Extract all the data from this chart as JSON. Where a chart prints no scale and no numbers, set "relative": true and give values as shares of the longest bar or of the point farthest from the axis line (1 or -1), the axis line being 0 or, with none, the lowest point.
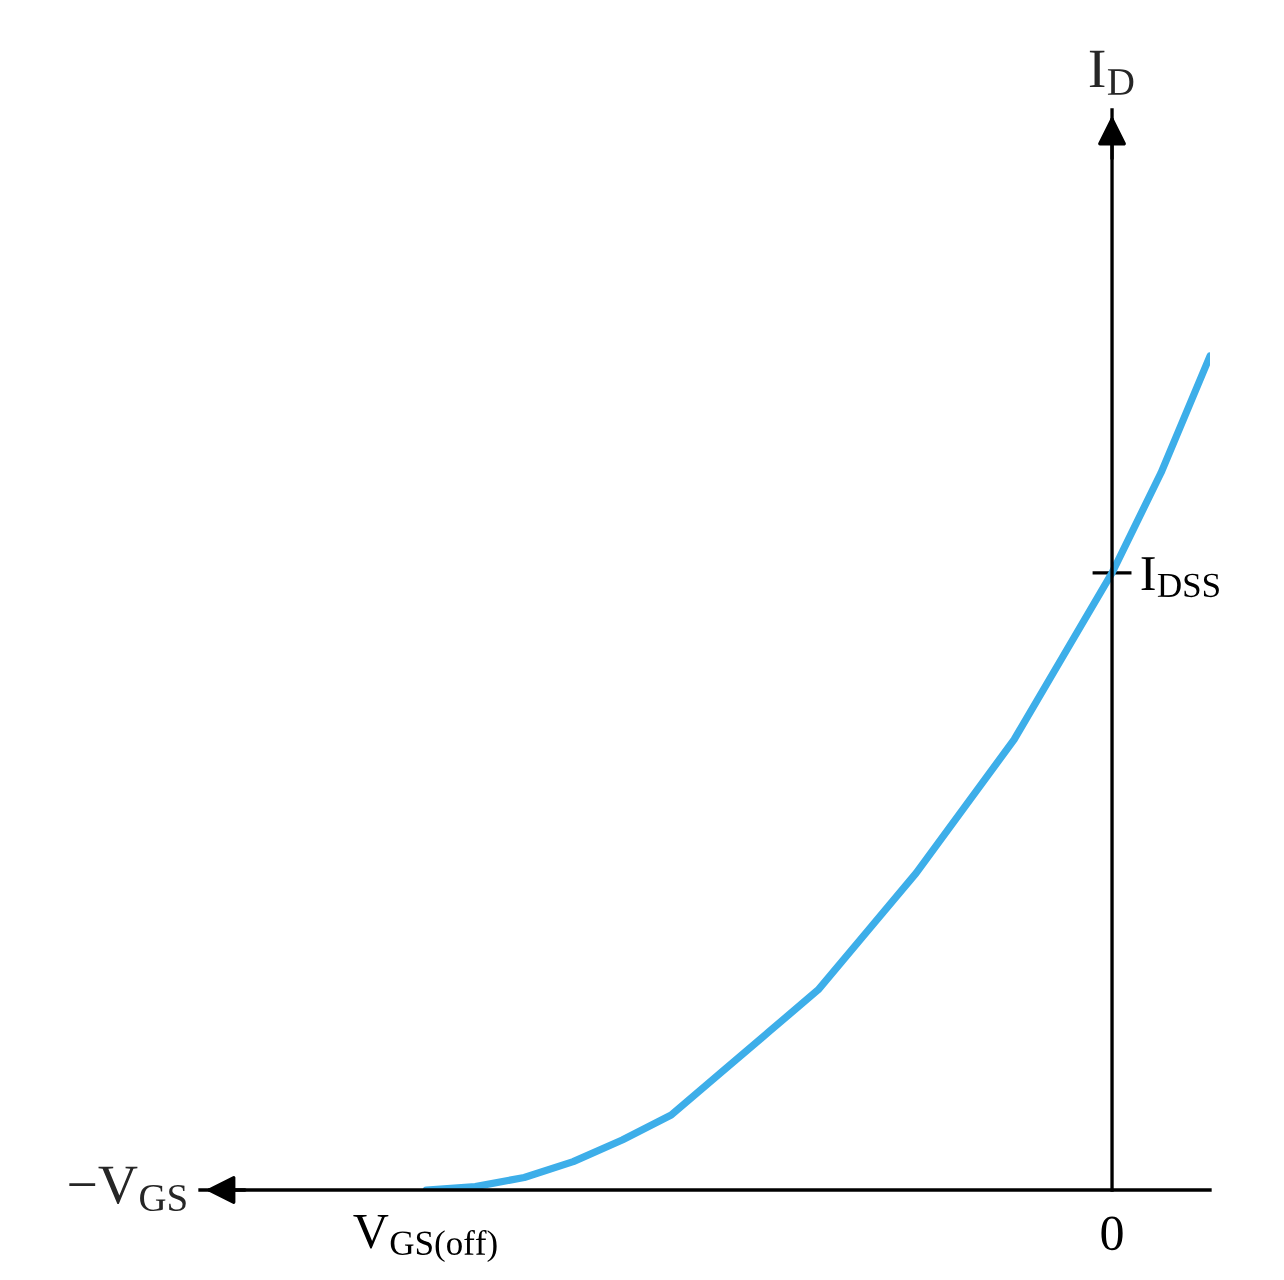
{
  "chart_data": {
    "type": "line",
    "relative": true,
    "xlabel": "−V$_{GS}$",
    "ylabel": "I$_{D}$",
    "categories": [
      "V$_{GS(off)}$",
      null,
      null,
      null,
      null,
      null,
      null,
      null,
      null,
      null,
      null,
      null,
      null,
      null,
      "0",
      null,
      null
    ],
    "series": [
      {
        "color": "#3daee9",
        "values": [
          0,
          0.004,
          0.015,
          0.034,
          0.06,
          0.09,
          0.14,
          0.19,
          0.24,
          0.31,
          0.38,
          0.46,
          0.54,
          0.64,
          0.74,
          0.86,
          1
        ]
      }
    ],
    "annotations": [
      "I$_{DSS}$"
    ]
  }
}
